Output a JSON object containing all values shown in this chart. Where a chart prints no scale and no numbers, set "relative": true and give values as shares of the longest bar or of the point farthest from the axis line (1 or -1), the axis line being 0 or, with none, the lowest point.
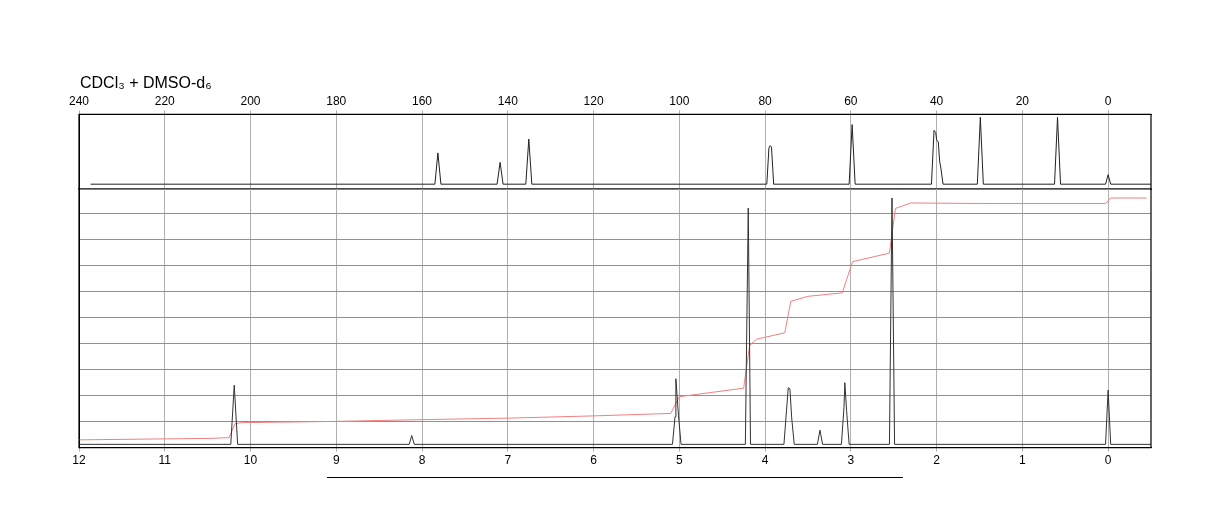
{
  "chart_data": [
    {
      "type": "line",
      "title": "CDCl₃ + DMSO-d₆",
      "relative": true,
      "grid": "x",
      "xlim": [
        240,
        -10
      ],
      "xticks": [
        240,
        220,
        200,
        180,
        160,
        140,
        120,
        100,
        80,
        60,
        40,
        20,
        0
      ],
      "series": [
        {
          "color": "#222222",
          "x": [
            237.3,
            157,
            156.3,
            155.6,
            142.5,
            141.8,
            141.1,
            135.8,
            135.1,
            134.4,
            79.6,
            79.1,
            78.8,
            78.5,
            78.0,
            60.4,
            59.7,
            59.0,
            41.2,
            40.6,
            40.2,
            40.0,
            39.6,
            39.3,
            39.0,
            38.5,
            30.5,
            29.8,
            29.1,
            12.5,
            11.8,
            11.1,
            0.6,
            0,
            -0.6,
            -10
          ],
          "values": [
            0.08,
            0.08,
            0.51,
            0.08,
            0.08,
            0.38,
            0.08,
            0.08,
            0.7,
            0.08,
            0.08,
            0.58,
            0.61,
            0.59,
            0.08,
            0.08,
            0.9,
            0.08,
            0.08,
            0.82,
            0.79,
            0.69,
            0.66,
            0.4,
            0.3,
            0.08,
            0.08,
            1,
            0.08,
            0.08,
            1,
            0.08,
            0.08,
            0.21,
            0.08,
            0.08
          ]
        }
      ]
    },
    {
      "type": "line",
      "relative": true,
      "grid": true,
      "xlim": [
        12,
        -0.5
      ],
      "xticks": [
        12,
        11,
        10,
        9,
        8,
        7,
        6,
        5,
        4,
        3,
        2,
        1,
        0
      ],
      "series": [
        {
          "color": "#333333",
          "x": [
            12,
            10.23,
            10.19,
            10.15,
            8.15,
            8.12,
            8.09,
            5.08,
            5.05,
            5.04,
            5.01,
            4.98,
            4.23,
            4.196,
            4.17,
            3.78,
            3.75,
            3.73,
            3.71,
            3.69,
            3.66,
            3.39,
            3.36,
            3.33,
            3.11,
            3.08,
            3.07,
            3.05,
            3.02,
            2.55,
            2.52,
            2.49,
            0.03,
            0,
            -0.03,
            -0.5
          ],
          "values": [
            0.013,
            0.013,
            0.25,
            0.013,
            0.013,
            0.048,
            0.013,
            0.013,
            0.124,
            0.276,
            0.13,
            0.013,
            0.013,
            0.96,
            0.013,
            0.013,
            0.15,
            0.24,
            0.235,
            0.12,
            0.013,
            0.013,
            0.07,
            0.013,
            0.013,
            0.16,
            0.26,
            0.15,
            0.013,
            0.013,
            1,
            0.013,
            0.013,
            0.23,
            0.013,
            0.013
          ]
        },
        {
          "color": "#f08080",
          "x": [
            12,
            10.47,
            10.25,
            10.18,
            10.1,
            9,
            8,
            7,
            6,
            5.1,
            5.0,
            4.25,
            4.18,
            4.1,
            3.77,
            3.7,
            3.5,
            3.1,
            2.98,
            2.55,
            2.48,
            2.3,
            1.5,
            0.03,
            -0.03,
            -0.45
          ],
          "values": [
            0.031,
            0.037,
            0.04,
            0.096,
            0.1,
            0.105,
            0.112,
            0.118,
            0.127,
            0.137,
            0.204,
            0.238,
            0.41,
            0.434,
            0.46,
            0.586,
            0.606,
            0.62,
            0.745,
            0.779,
            0.958,
            0.98,
            0.978,
            0.978,
            1.0,
            1.0
          ]
        }
      ]
    }
  ]
}
